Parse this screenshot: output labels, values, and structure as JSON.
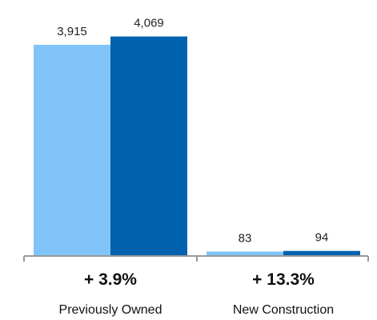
{
  "chart_data": {
    "type": "bar",
    "categories": [
      "Previously Owned",
      "New Construction"
    ],
    "series": [
      {
        "values": [
          3915,
          83
        ],
        "labels": [
          "3,915",
          "83"
        ],
        "color": "#80C4FA"
      },
      {
        "values": [
          4069,
          94
        ],
        "labels": [
          "4,069",
          "94"
        ],
        "color": "#0062AE"
      }
    ],
    "changes": [
      "+ 3.9%",
      "+ 13.3%"
    ],
    "title": "",
    "xlabel": "",
    "ylabel": "",
    "ylim": [
      0,
      4300
    ],
    "grid": false,
    "legend": "none"
  }
}
